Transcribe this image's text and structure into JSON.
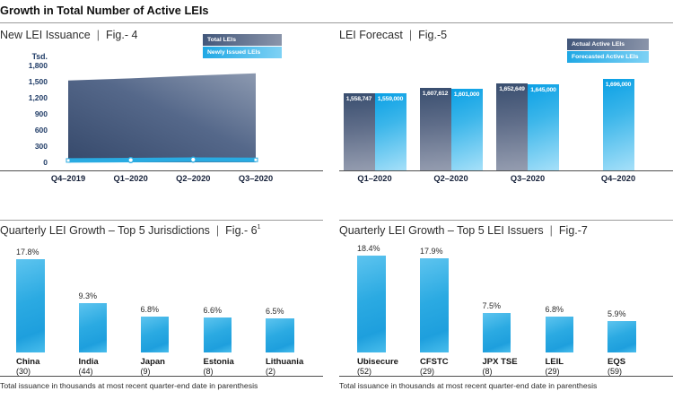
{
  "page_title": "Growth in Total Number of Active LEIs",
  "separator": "|",
  "footnote": "Total issuance in thousands at most recent quarter-end date in parenthesis",
  "colors": {
    "accent_blue": "#29abe2",
    "dark_navy": "#394e6f",
    "navy_text": "#1f3b66",
    "area_dark": "#36496b",
    "area_light": "#8c99b0"
  },
  "chart_data": [
    {
      "id": "fig4",
      "type": "area",
      "title": "New LEI Issuance",
      "fig_label": "Fig.- 4",
      "y_unit": "Tsd.",
      "x": [
        "Q4–2019",
        "Q1–2020",
        "Q2–2020",
        "Q3–2020"
      ],
      "ylim": [
        0,
        1800
      ],
      "ytick_step": 300,
      "grid": false,
      "legend_position": "top-right",
      "series": [
        {
          "name": "Total LEIs",
          "values": [
            1520,
            1560,
            1610,
            1655
          ]
        },
        {
          "name": "Newly Issued LEIs",
          "values": [
            35,
            42,
            50,
            46
          ]
        }
      ]
    },
    {
      "id": "fig5",
      "type": "bar",
      "title": "LEI Forecast",
      "fig_label": "Fig.-5",
      "categories": [
        "Q1–2020",
        "Q2–2020",
        "Q3–2020",
        "Q4–2020"
      ],
      "legend_position": "top-right",
      "bar_labels": true,
      "series": [
        {
          "name": "Actual Active LEIs",
          "values": [
            1558747,
            1607612,
            1652649,
            null
          ]
        },
        {
          "name": "Forecasted Active LEIs",
          "values": [
            1559000,
            1601000,
            1645000,
            1696000
          ]
        }
      ]
    },
    {
      "id": "fig6",
      "type": "bar",
      "title": "Quarterly LEI Growth – Top 5 Jurisdictions",
      "fig_label": "Fig.- 6",
      "fig_superscript": "1",
      "categories": [
        "China",
        "India",
        "Japan",
        "Estonia",
        "Lithuania"
      ],
      "issuance_thousands": [
        30,
        44,
        9,
        8,
        2
      ],
      "values": [
        17.8,
        9.3,
        6.8,
        6.6,
        6.5
      ],
      "unit": "%"
    },
    {
      "id": "fig7",
      "type": "bar",
      "title": "Quarterly LEI Growth – Top 5 LEI Issuers",
      "fig_label": "Fig.-7",
      "categories": [
        "Ubisecure",
        "CFSTC",
        "JPX TSE",
        "LEIL",
        "EQS"
      ],
      "issuance_thousands": [
        52,
        29,
        8,
        29,
        59
      ],
      "values": [
        18.4,
        17.9,
        7.5,
        6.8,
        5.9
      ],
      "unit": "%"
    }
  ]
}
